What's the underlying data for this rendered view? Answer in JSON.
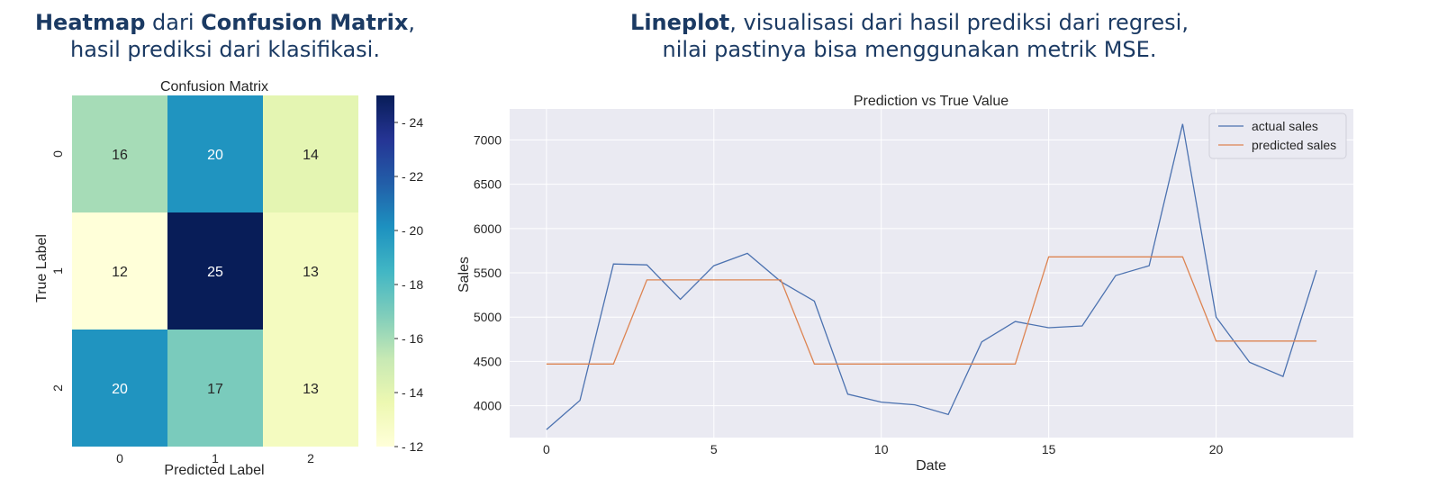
{
  "left_caption": {
    "bold1": "Heatmap",
    "text1": " dari ",
    "bold2": "Confusion Matrix",
    "text2": ",",
    "line2": "hasil prediksi dari klasifikasi."
  },
  "right_caption": {
    "bold1": "Lineplot",
    "text1": ", visualisasi dari hasil prediksi dari regresi,",
    "line2": "nilai pastinya bisa menggunakan metrik MSE."
  },
  "chart_data": [
    {
      "type": "heatmap",
      "title": "Confusion Matrix",
      "xlabel": "Predicted Label",
      "ylabel": "True Label",
      "x_categories": [
        "0",
        "1",
        "2"
      ],
      "y_categories": [
        "0",
        "1",
        "2"
      ],
      "values": [
        [
          16,
          20,
          14
        ],
        [
          12,
          25,
          13
        ],
        [
          20,
          17,
          13
        ]
      ],
      "colormap": "YlGnBu",
      "colorbar": {
        "min": 12,
        "max": 25,
        "ticks": [
          12,
          14,
          16,
          18,
          20,
          22,
          24
        ]
      }
    },
    {
      "type": "line",
      "title": "Prediction vs True Value",
      "xlabel": "Date",
      "ylabel": "Sales",
      "x": [
        0,
        1,
        2,
        3,
        4,
        5,
        6,
        7,
        8,
        9,
        10,
        11,
        12,
        13,
        14,
        15,
        16,
        17,
        18,
        19,
        20,
        21,
        22,
        23
      ],
      "xticks": [
        0,
        5,
        10,
        15,
        20
      ],
      "yticks": [
        4000,
        4500,
        5000,
        5500,
        6000,
        6500,
        7000
      ],
      "xlim": [
        -1.1,
        24.1
      ],
      "ylim": [
        3640,
        7350
      ],
      "grid": true,
      "legend": "top-right",
      "series": [
        {
          "name": "actual sales",
          "color": "#4c72b0",
          "values": [
            3730,
            4060,
            5600,
            5590,
            5200,
            5580,
            5720,
            5400,
            5180,
            4130,
            4040,
            4010,
            3900,
            4720,
            4950,
            4880,
            4900,
            5470,
            5580,
            7180,
            5000,
            4490,
            4330,
            5530
          ]
        },
        {
          "name": "predicted sales",
          "color": "#dd8452",
          "values": [
            4470,
            4470,
            4470,
            5420,
            5420,
            5420,
            5420,
            5420,
            4470,
            4470,
            4470,
            4470,
            4470,
            4470,
            4470,
            5680,
            5680,
            5680,
            5680,
            5680,
            4730,
            4730,
            4730,
            4730
          ]
        }
      ]
    }
  ]
}
